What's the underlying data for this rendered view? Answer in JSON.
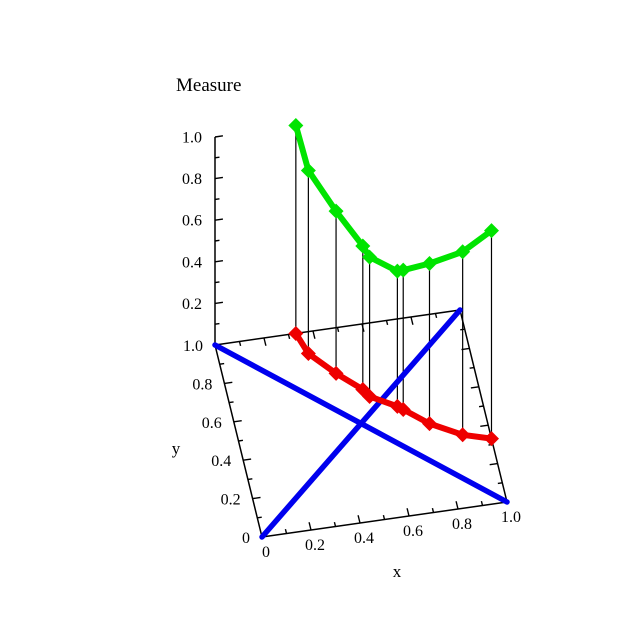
{
  "page": {
    "background": "#ffffff"
  },
  "chart_data": {
    "type": "line",
    "plot_kind": "3d-curve-with-base-projection",
    "title": "Measure",
    "legend": "none",
    "grid": false,
    "axes": {
      "x": {
        "label": "x",
        "range": [
          0,
          1
        ],
        "major_ticks": [
          0.2,
          0.4,
          0.6,
          0.8
        ],
        "minor_ticks": [
          0.1,
          0.3,
          0.5,
          0.7,
          0.9
        ],
        "tick_labels": [
          {
            "v": 0,
            "text": "0"
          },
          {
            "v": 0.2,
            "text": "0.2"
          },
          {
            "v": 0.4,
            "text": "0.4"
          },
          {
            "v": 0.6,
            "text": "0.6"
          },
          {
            "v": 0.8,
            "text": "0.8"
          },
          {
            "v": 1,
            "text": "1.0"
          }
        ]
      },
      "y": {
        "label": "y",
        "range": [
          0,
          1
        ],
        "major_ticks": [
          0.2,
          0.4,
          0.6,
          0.8
        ],
        "minor_ticks": [
          0.1,
          0.3,
          0.5,
          0.7,
          0.9
        ],
        "tick_labels": [
          {
            "v": 1,
            "text": "1.0"
          },
          {
            "v": 0.8,
            "text": "0.8"
          },
          {
            "v": 0.6,
            "text": "0.6"
          },
          {
            "v": 0.4,
            "text": "0.4"
          },
          {
            "v": 0.2,
            "text": "0.2"
          },
          {
            "v": 0,
            "text": "0"
          }
        ]
      },
      "z": {
        "label": "Measure",
        "range": [
          0,
          1
        ],
        "major_ticks": [
          0.2,
          0.4,
          0.6,
          0.8,
          1.0
        ],
        "minor_ticks": [
          0.1,
          0.3,
          0.5,
          0.7,
          0.9
        ],
        "tick_labels": [
          {
            "v": 1,
            "text": "1.0"
          },
          {
            "v": 0.8,
            "text": "0.8"
          },
          {
            "v": 0.6,
            "text": "0.6"
          },
          {
            "v": 0.4,
            "text": "0.4"
          },
          {
            "v": 0.2,
            "text": "0.2"
          }
        ]
      }
    },
    "colors": {
      "measure_curve": "#00e400",
      "base_projection": "#ee0000",
      "diagonals": "#0000ee",
      "axes": "#000000",
      "drop_lines": "#000000"
    },
    "series": [
      {
        "name": "measure-curve",
        "color": "#00e400",
        "marker": "diamond",
        "points": [
          [
            0.33,
            1.0,
            1.0
          ],
          [
            0.36,
            0.89,
            0.88
          ],
          [
            0.45,
            0.77,
            0.78
          ],
          [
            0.54,
            0.67,
            0.69
          ],
          [
            0.56,
            0.63,
            0.67
          ],
          [
            0.66,
            0.56,
            0.65
          ],
          [
            0.68,
            0.54,
            0.67
          ],
          [
            0.77,
            0.45,
            0.77
          ],
          [
            0.89,
            0.37,
            0.88
          ],
          [
            1.0,
            0.33,
            1.0
          ]
        ]
      },
      {
        "name": "base-projection-curve",
        "color": "#ee0000",
        "marker": "diamond",
        "points": [
          [
            0.33,
            1.0,
            0
          ],
          [
            0.36,
            0.89,
            0
          ],
          [
            0.45,
            0.77,
            0
          ],
          [
            0.54,
            0.67,
            0
          ],
          [
            0.56,
            0.63,
            0
          ],
          [
            0.66,
            0.56,
            0
          ],
          [
            0.68,
            0.54,
            0
          ],
          [
            0.77,
            0.45,
            0
          ],
          [
            0.89,
            0.37,
            0
          ],
          [
            1.0,
            0.33,
            0
          ]
        ]
      },
      {
        "name": "base-diagonal-1",
        "color": "#0000ee",
        "marker": "none",
        "points": [
          [
            0,
            1,
            0
          ],
          [
            1,
            0,
            0
          ]
        ]
      },
      {
        "name": "base-diagonal-2",
        "color": "#0000ee",
        "marker": "none",
        "points": [
          [
            0,
            0,
            0
          ],
          [
            1,
            1,
            0
          ]
        ]
      }
    ],
    "drop_lines": {
      "between": [
        "measure-curve",
        "base-projection-curve"
      ],
      "color": "#000000"
    }
  }
}
